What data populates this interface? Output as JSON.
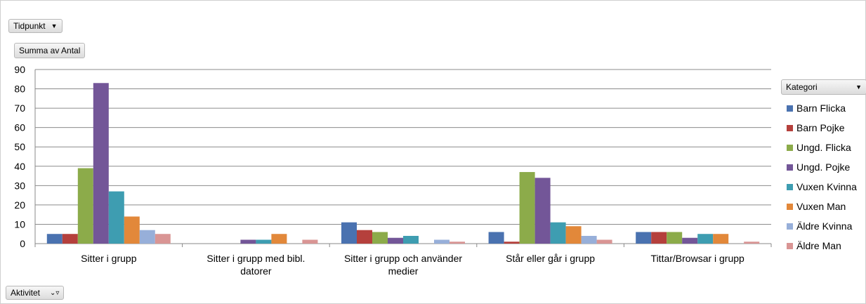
{
  "filters": {
    "tidpunkt_label": "Tidpunkt",
    "summa_label": "Summa av Antal",
    "aktivitet_label": "Aktivitet",
    "kategori_label": "Kategori"
  },
  "colors": {
    "Barn Flicka": "#4a72b0",
    "Barn Pojke": "#b5403c",
    "Ungd. Flicka": "#8cab4a",
    "Ungd. Pojke": "#735698",
    "Vuxen Kvinna": "#3e9db1",
    "Vuxen Man": "#e2883a",
    "Äldre Kvinna": "#97afd9",
    "Äldre Man": "#d99594"
  },
  "chart_data": {
    "type": "bar",
    "title": "",
    "xlabel": "",
    "ylabel": "",
    "ylim": [
      0,
      90
    ],
    "yticks": [
      0,
      10,
      20,
      30,
      40,
      50,
      60,
      70,
      80,
      90
    ],
    "grid": true,
    "legend_position": "right",
    "categories": [
      "Sitter i grupp",
      "Sitter i grupp med bibl. datorer",
      "Sitter i grupp och använder medier",
      "Står eller går i grupp",
      "Tittar/Browsar i grupp"
    ],
    "series": [
      {
        "name": "Barn Flicka",
        "values": [
          5,
          0,
          11,
          6,
          6
        ]
      },
      {
        "name": "Barn Pojke",
        "values": [
          5,
          0,
          7,
          1,
          6
        ]
      },
      {
        "name": "Ungd. Flicka",
        "values": [
          39,
          0,
          6,
          37,
          6
        ]
      },
      {
        "name": "Ungd. Pojke",
        "values": [
          83,
          2,
          3,
          34,
          3
        ]
      },
      {
        "name": "Vuxen Kvinna",
        "values": [
          27,
          2,
          4,
          11,
          5
        ]
      },
      {
        "name": "Vuxen Man",
        "values": [
          14,
          5,
          0,
          9,
          5
        ]
      },
      {
        "name": "Äldre Kvinna",
        "values": [
          7,
          0,
          2,
          4,
          0
        ]
      },
      {
        "name": "Äldre Man",
        "values": [
          5,
          2,
          1,
          2,
          1
        ]
      }
    ]
  }
}
